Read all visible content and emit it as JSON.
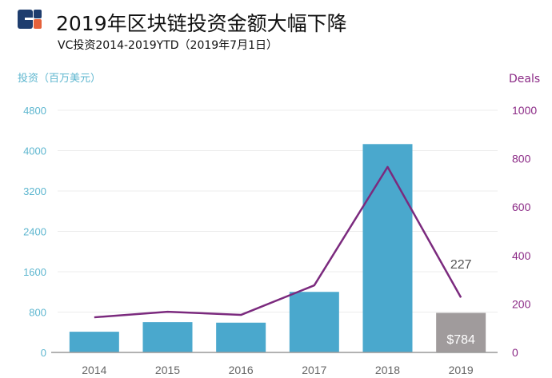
{
  "title": "2019年区块链投资金额大幅下降",
  "subtitle": "VC投资2014-2019YTD（2019年7月1日）",
  "colors": {
    "bar": "#4aa8cd",
    "bar_highlight": "#a09b9c",
    "line": "#7b2a7e",
    "left_axis": "#5db6cf",
    "right_axis": "#8b2a86"
  },
  "chart_data": {
    "type": "bar+line",
    "categories": [
      "2014",
      "2015",
      "2016",
      "2017",
      "2018",
      "2019"
    ],
    "series": [
      {
        "name": "投资（百万美元）",
        "type": "bar",
        "axis": "left",
        "values": [
          410,
          600,
          590,
          1200,
          4130,
          784
        ]
      },
      {
        "name": "Deals",
        "type": "line",
        "axis": "right",
        "values": [
          145,
          168,
          155,
          277,
          766,
          227
        ]
      }
    ],
    "ylabel": "投资（百万美元）",
    "y2label": "Deals",
    "ylim": [
      0,
      4800
    ],
    "y2lim": [
      0,
      1000
    ],
    "yticks": [
      "0",
      "800",
      "1600",
      "2400",
      "3200",
      "4000",
      "4800"
    ],
    "y2ticks": [
      "0",
      "200",
      "400",
      "600",
      "800",
      "1000"
    ],
    "annotations": {
      "bar_2019": "$784",
      "line_2019": "227"
    },
    "grid": true
  }
}
